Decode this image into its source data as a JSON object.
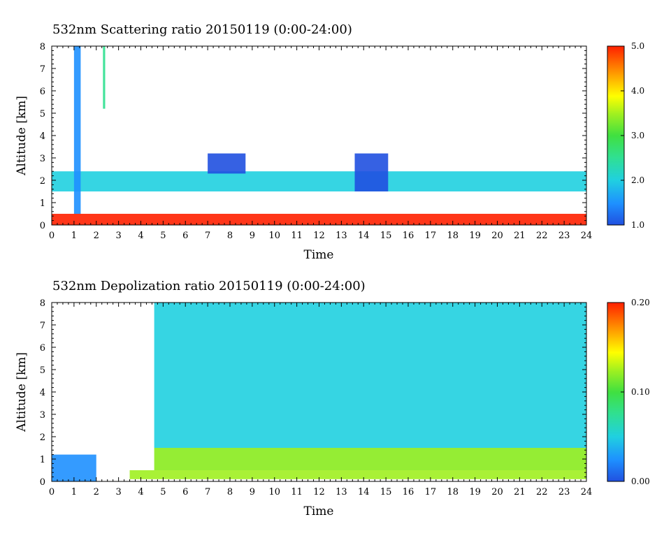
{
  "colors": {
    "background": "#ffffff",
    "colorscale": [
      "#2050e0",
      "#1e90ff",
      "#20d0e0",
      "#30e090",
      "#40e040",
      "#a0f020",
      "#ffff00",
      "#ffb000",
      "#ff6000",
      "#ff2000"
    ]
  },
  "chart_data": [
    {
      "type": "heatmap",
      "title": "532nm Scattering ratio  20150119 (0:00-24:00)",
      "xlabel": "Time",
      "ylabel": "Altitude [km]",
      "xlim": [
        0,
        24
      ],
      "ylim": [
        0,
        8
      ],
      "x_ticks": [
        "0",
        "1",
        "2",
        "3",
        "4",
        "5",
        "6",
        "7",
        "8",
        "9",
        "10",
        "11",
        "12",
        "13",
        "14",
        "15",
        "16",
        "17",
        "18",
        "19",
        "20",
        "21",
        "22",
        "23",
        "24"
      ],
      "y_ticks": [
        "0",
        "1",
        "2",
        "3",
        "4",
        "5",
        "6",
        "7",
        "8"
      ],
      "colorbar": {
        "min": 1.0,
        "max": 5.0,
        "labels": [
          "1.0",
          "2.0",
          "3.0",
          "4.0",
          "5.0"
        ]
      },
      "features": [
        {
          "kind": "surface-layer",
          "x": [
            0,
            24
          ],
          "y": [
            0,
            0.5
          ],
          "value": 5.0
        },
        {
          "kind": "boundary-layer-top",
          "x": [
            0,
            24
          ],
          "y": [
            1.5,
            2.4
          ],
          "value": 2.0
        },
        {
          "kind": "cloud",
          "x": [
            1.0,
            1.3
          ],
          "y": [
            0.5,
            8
          ],
          "value": 1.5
        },
        {
          "kind": "cloud",
          "x": [
            2.3,
            2.4
          ],
          "y": [
            5.2,
            8
          ],
          "value": 2.5
        },
        {
          "kind": "cloud",
          "x": [
            13.6,
            15.1
          ],
          "y": [
            1.5,
            3.2
          ],
          "value": 1.3
        },
        {
          "kind": "cloud",
          "x": [
            7.0,
            8.7
          ],
          "y": [
            2.3,
            3.2
          ],
          "value": 1.3
        }
      ]
    },
    {
      "type": "heatmap",
      "title": "532nm Depolization ratio  20150119 (0:00-24:00)",
      "xlabel": "Time",
      "ylabel": "Altitude [km]",
      "xlim": [
        0,
        24
      ],
      "ylim": [
        0,
        8
      ],
      "x_ticks": [
        "0",
        "1",
        "2",
        "3",
        "4",
        "5",
        "6",
        "7",
        "8",
        "9",
        "10",
        "11",
        "12",
        "13",
        "14",
        "15",
        "16",
        "17",
        "18",
        "19",
        "20",
        "21",
        "22",
        "23",
        "24"
      ],
      "y_ticks": [
        "0",
        "1",
        "2",
        "3",
        "4",
        "5",
        "6",
        "7",
        "8"
      ],
      "colorbar": {
        "min": 0.0,
        "max": 0.2,
        "labels": [
          "0.00",
          "0.10",
          "0.20"
        ]
      },
      "features": [
        {
          "kind": "background",
          "x": [
            4.5,
            24
          ],
          "y": [
            0.5,
            8
          ],
          "value": 0.05
        },
        {
          "kind": "boundary-layer",
          "x": [
            3.5,
            24
          ],
          "y": [
            0.1,
            1.5
          ],
          "value": 0.11
        },
        {
          "kind": "low-depol",
          "x": [
            0,
            2.0
          ],
          "y": [
            0,
            1.2
          ],
          "value": 0.03
        },
        {
          "kind": "missing",
          "x": [
            2.1,
            4.6
          ],
          "y": [
            0.5,
            8
          ],
          "value": null
        }
      ]
    }
  ]
}
